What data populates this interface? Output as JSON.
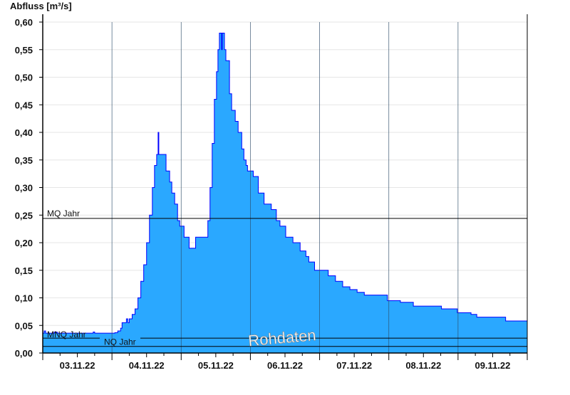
{
  "chart_data": {
    "type": "area",
    "ylabel": "Abfluss [m³/s]",
    "ylim": [
      0,
      0.6
    ],
    "yticks": [
      "0,00",
      "0,05",
      "0,10",
      "0,15",
      "0,20",
      "0,25",
      "0,30",
      "0,35",
      "0,40",
      "0,45",
      "0,50",
      "0,55",
      "0,60"
    ],
    "xlim": [
      "03.11.22 00:00",
      "10.11.22 00:00"
    ],
    "xticks": [
      "03.11.22",
      "04.11.22",
      "05.11.22",
      "06.11.22",
      "07.11.22",
      "08.11.22",
      "09.11.22"
    ],
    "grid": true,
    "step": true,
    "colors": {
      "fill": "#2aa8ff",
      "line": "#0000ff",
      "day_grid": "#2a4a66"
    },
    "reference_lines": [
      {
        "label": "MQ Jahr",
        "value": 0.244
      },
      {
        "label": "MNQ Jahr",
        "value": 0.027
      },
      {
        "label": "NQ Jahr",
        "value": 0.012
      }
    ],
    "watermark": "Rohdaten",
    "points": [
      [
        "03.11.22 00:00",
        0.036
      ],
      [
        "03.11.22 00:30",
        0.04
      ],
      [
        "03.11.22 01:00",
        0.036
      ],
      [
        "03.11.22 04:00",
        0.038
      ],
      [
        "03.11.22 05:00",
        0.036
      ],
      [
        "03.11.22 17:30",
        0.038
      ],
      [
        "03.11.22 18:00",
        0.036
      ],
      [
        "04.11.22 01:00",
        0.037
      ],
      [
        "04.11.22 02:00",
        0.04
      ],
      [
        "04.11.22 03:00",
        0.045
      ],
      [
        "04.11.22 03:30",
        0.055
      ],
      [
        "04.11.22 05:00",
        0.062
      ],
      [
        "04.11.22 05:30",
        0.055
      ],
      [
        "04.11.22 06:00",
        0.062
      ],
      [
        "04.11.22 07:00",
        0.07
      ],
      [
        "04.11.22 08:00",
        0.08
      ],
      [
        "04.11.22 09:00",
        0.1
      ],
      [
        "04.11.22 10:00",
        0.13
      ],
      [
        "04.11.22 11:00",
        0.16
      ],
      [
        "04.11.22 12:00",
        0.2
      ],
      [
        "04.11.22 13:00",
        0.25
      ],
      [
        "04.11.22 14:00",
        0.3
      ],
      [
        "04.11.22 14:45",
        0.34
      ],
      [
        "04.11.22 15:30",
        0.36
      ],
      [
        "04.11.22 16:00",
        0.4
      ],
      [
        "04.11.22 16:15",
        0.36
      ],
      [
        "04.11.22 18:00",
        0.36
      ],
      [
        "04.11.22 18:45",
        0.33
      ],
      [
        "04.11.22 20:00",
        0.31
      ],
      [
        "04.11.22 20:45",
        0.29
      ],
      [
        "04.11.22 21:45",
        0.27
      ],
      [
        "04.11.22 22:45",
        0.24
      ],
      [
        "04.11.22 23:30",
        0.23
      ],
      [
        "05.11.22 01:00",
        0.21
      ],
      [
        "05.11.22 02:45",
        0.19
      ],
      [
        "05.11.22 04:15",
        0.19
      ],
      [
        "05.11.22 05:00",
        0.21
      ],
      [
        "05.11.22 08:30",
        0.21
      ],
      [
        "05.11.22 09:15",
        0.24
      ],
      [
        "05.11.22 10:00",
        0.3
      ],
      [
        "05.11.22 10:45",
        0.38
      ],
      [
        "05.11.22 11:30",
        0.46
      ],
      [
        "05.11.22 12:15",
        0.51
      ],
      [
        "05.11.22 12:45",
        0.55
      ],
      [
        "05.11.22 13:15",
        0.58
      ],
      [
        "05.11.22 14:00",
        0.55
      ],
      [
        "05.11.22 14:15",
        0.58
      ],
      [
        "05.11.22 15:00",
        0.55
      ],
      [
        "05.11.22 15:30",
        0.53
      ],
      [
        "05.11.22 16:45",
        0.47
      ],
      [
        "05.11.22 17:30",
        0.44
      ],
      [
        "05.11.22 18:45",
        0.42
      ],
      [
        "05.11.22 19:45",
        0.4
      ],
      [
        "05.11.22 21:00",
        0.37
      ],
      [
        "05.11.22 21:45",
        0.35
      ],
      [
        "05.11.22 22:30",
        0.34
      ],
      [
        "05.11.22 23:00",
        0.33
      ],
      [
        "06.11.22 01:00",
        0.32
      ],
      [
        "06.11.22 02:45",
        0.29
      ],
      [
        "06.11.22 04:45",
        0.27
      ],
      [
        "06.11.22 07:15",
        0.26
      ],
      [
        "06.11.22 09:00",
        0.24
      ],
      [
        "06.11.22 10:15",
        0.23
      ],
      [
        "06.11.22 12:15",
        0.21
      ],
      [
        "06.11.22 14:45",
        0.2
      ],
      [
        "06.11.22 17:15",
        0.185
      ],
      [
        "06.11.22 19:15",
        0.175
      ],
      [
        "06.11.22 20:15",
        0.165
      ],
      [
        "06.11.22 22:15",
        0.15
      ],
      [
        "07.11.22 03:00",
        0.14
      ],
      [
        "07.11.22 05:30",
        0.13
      ],
      [
        "07.11.22 08:00",
        0.12
      ],
      [
        "07.11.22 10:30",
        0.115
      ],
      [
        "07.11.22 13:00",
        0.11
      ],
      [
        "07.11.22 15:30",
        0.105
      ],
      [
        "07.11.22 22:30",
        0.105
      ],
      [
        "07.11.22 23:30",
        0.095
      ],
      [
        "08.11.22 04:00",
        0.092
      ],
      [
        "08.11.22 08:30",
        0.085
      ],
      [
        "08.11.22 13:15",
        0.085
      ],
      [
        "08.11.22 18:15",
        0.08
      ],
      [
        "08.11.22 23:45",
        0.073
      ],
      [
        "09.11.22 04:30",
        0.07
      ],
      [
        "09.11.22 06:30",
        0.065
      ],
      [
        "09.11.22 16:30",
        0.058
      ],
      [
        "10.11.22 00:00",
        0.058
      ]
    ]
  }
}
